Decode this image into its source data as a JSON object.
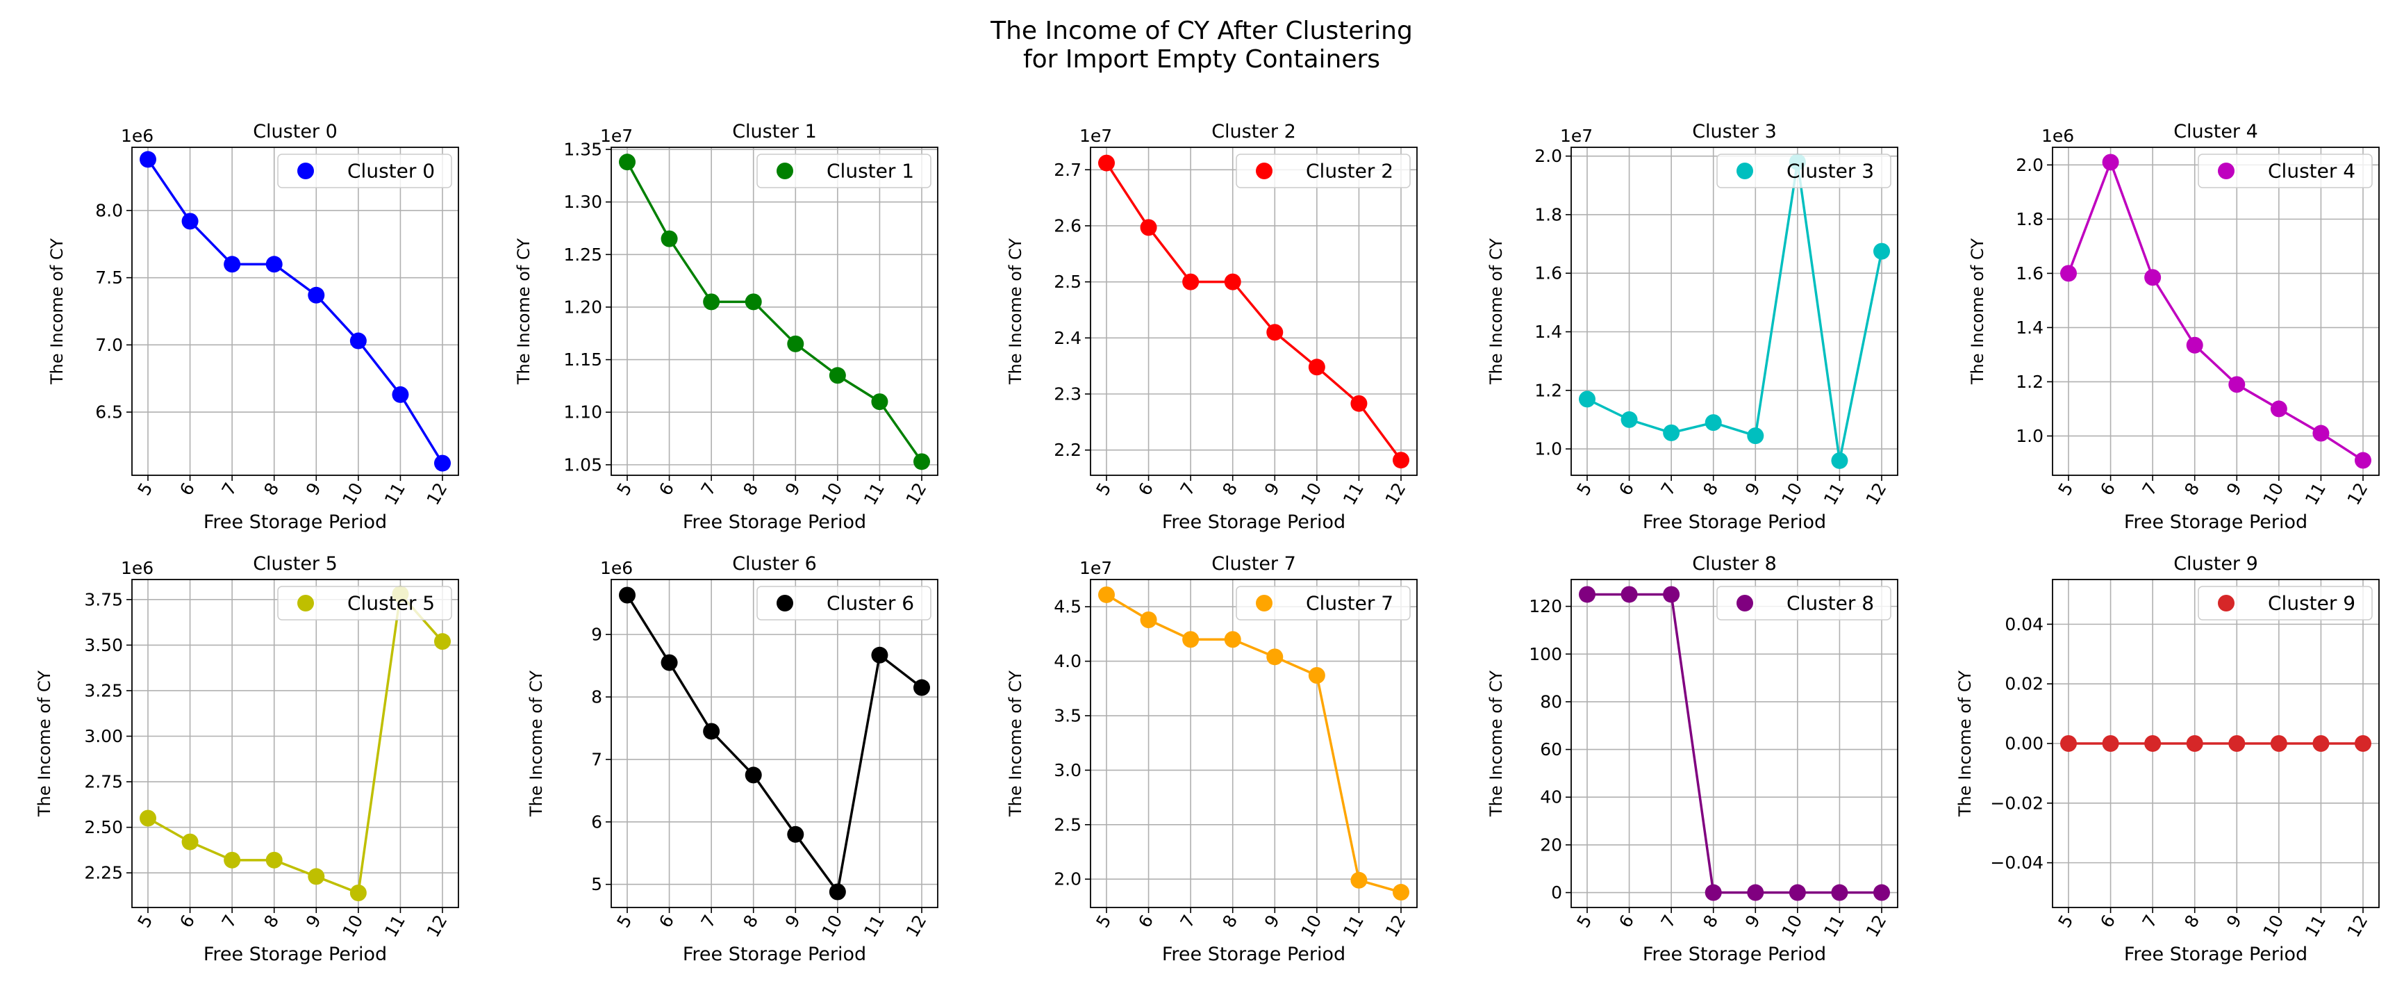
{
  "figure": {
    "title_line1": "The Income of CY After Clustering",
    "title_line2": "for Import Empty Containers"
  },
  "chart_data": [
    {
      "type": "line",
      "title": "Cluster 0",
      "legend": "Cluster 0",
      "color": "#0000ff",
      "xlabel": "Free Storage Period",
      "ylabel": "The Income of CY",
      "multiplier": "1e6",
      "x": [
        5,
        6,
        7,
        8,
        9,
        10,
        11,
        12
      ],
      "values": [
        8.38,
        7.92,
        7.6,
        7.6,
        7.37,
        7.03,
        6.63,
        6.12
      ],
      "ylim": [
        6.03,
        8.47
      ],
      "yticks": [
        6.5,
        7.0,
        7.5,
        8.0
      ],
      "ytick_labels": [
        "6.5",
        "7.0",
        "7.5",
        "8.0"
      ]
    },
    {
      "type": "line",
      "title": "Cluster 1",
      "legend": "Cluster 1",
      "color": "#008000",
      "xlabel": "Free Storage Period",
      "ylabel": "The Income of CY",
      "multiplier": "1e7",
      "x": [
        5,
        6,
        7,
        8,
        9,
        10,
        11,
        12
      ],
      "values": [
        1.338,
        1.265,
        1.205,
        1.205,
        1.165,
        1.135,
        1.11,
        1.053
      ],
      "ylim": [
        1.04,
        1.352
      ],
      "yticks": [
        1.05,
        1.1,
        1.15,
        1.2,
        1.25,
        1.3,
        1.35
      ],
      "ytick_labels": [
        "1.05",
        "1.10",
        "1.15",
        "1.20",
        "1.25",
        "1.30",
        "1.35"
      ]
    },
    {
      "type": "line",
      "title": "Cluster 2",
      "legend": "Cluster 2",
      "color": "#ff0000",
      "xlabel": "Free Storage Period",
      "ylabel": "The Income of CY",
      "multiplier": "1e7",
      "x": [
        5,
        6,
        7,
        8,
        9,
        10,
        11,
        12
      ],
      "values": [
        2.712,
        2.597,
        2.5,
        2.5,
        2.41,
        2.348,
        2.283,
        2.182
      ],
      "ylim": [
        2.155,
        2.74
      ],
      "yticks": [
        2.2,
        2.3,
        2.4,
        2.5,
        2.6,
        2.7
      ],
      "ytick_labels": [
        "2.2",
        "2.3",
        "2.4",
        "2.5",
        "2.6",
        "2.7"
      ]
    },
    {
      "type": "line",
      "title": "Cluster 3",
      "legend": "Cluster 3",
      "color": "#00bfbf",
      "xlabel": "Free Storage Period",
      "ylabel": "The Income of CY",
      "multiplier": "1e7",
      "x": [
        5,
        6,
        7,
        8,
        9,
        10,
        11,
        12
      ],
      "values": [
        1.17,
        1.1,
        1.055,
        1.09,
        1.045,
        1.98,
        0.96,
        1.675
      ],
      "ylim": [
        0.91,
        2.03
      ],
      "yticks": [
        1.0,
        1.2,
        1.4,
        1.6,
        1.8,
        2.0
      ],
      "ytick_labels": [
        "1.0",
        "1.2",
        "1.4",
        "1.6",
        "1.8",
        "2.0"
      ]
    },
    {
      "type": "line",
      "title": "Cluster 4",
      "legend": "Cluster 4",
      "color": "#bf00bf",
      "xlabel": "Free Storage Period",
      "ylabel": "The Income of CY",
      "multiplier": "1e6",
      "x": [
        5,
        6,
        7,
        8,
        9,
        10,
        11,
        12
      ],
      "values": [
        1.6,
        2.01,
        1.585,
        1.335,
        1.19,
        1.1,
        1.01,
        0.91
      ],
      "ylim": [
        0.855,
        2.065
      ],
      "yticks": [
        1.0,
        1.2,
        1.4,
        1.6,
        1.8,
        2.0
      ],
      "ytick_labels": [
        "1.0",
        "1.2",
        "1.4",
        "1.6",
        "1.8",
        "2.0"
      ]
    },
    {
      "type": "line",
      "title": "Cluster 5",
      "legend": "Cluster 5",
      "color": "#bfbf00",
      "xlabel": "Free Storage Period",
      "ylabel": "The Income of CY",
      "multiplier": "1e6",
      "x": [
        5,
        6,
        7,
        8,
        9,
        10,
        11,
        12
      ],
      "values": [
        2.55,
        2.42,
        2.32,
        2.32,
        2.23,
        2.14,
        3.78,
        3.52
      ],
      "ylim": [
        2.06,
        3.86
      ],
      "yticks": [
        2.25,
        2.5,
        2.75,
        3.0,
        3.25,
        3.5,
        3.75
      ],
      "ytick_labels": [
        "2.25",
        "2.50",
        "2.75",
        "3.00",
        "3.25",
        "3.50",
        "3.75"
      ]
    },
    {
      "type": "line",
      "title": "Cluster 6",
      "legend": "Cluster 6",
      "color": "#000000",
      "xlabel": "Free Storage Period",
      "ylabel": "The Income of CY",
      "multiplier": "1e6",
      "x": [
        5,
        6,
        7,
        8,
        9,
        10,
        11,
        12
      ],
      "values": [
        9.63,
        8.55,
        7.45,
        6.75,
        5.8,
        4.88,
        8.67,
        8.15
      ],
      "ylim": [
        4.63,
        9.88
      ],
      "yticks": [
        5,
        6,
        7,
        8,
        9
      ],
      "ytick_labels": [
        "5",
        "6",
        "7",
        "8",
        "9"
      ]
    },
    {
      "type": "line",
      "title": "Cluster 7",
      "legend": "Cluster 7",
      "color": "#ffa500",
      "xlabel": "Free Storage Period",
      "ylabel": "The Income of CY",
      "multiplier": "1e7",
      "x": [
        5,
        6,
        7,
        8,
        9,
        10,
        11,
        12
      ],
      "values": [
        4.61,
        4.38,
        4.2,
        4.2,
        4.04,
        3.87,
        1.99,
        1.88
      ],
      "ylim": [
        1.74,
        4.75
      ],
      "yticks": [
        2.0,
        2.5,
        3.0,
        3.5,
        4.0,
        4.5
      ],
      "ytick_labels": [
        "2.0",
        "2.5",
        "3.0",
        "3.5",
        "4.0",
        "4.5"
      ]
    },
    {
      "type": "line",
      "title": "Cluster 8",
      "legend": "Cluster 8",
      "color": "#800080",
      "xlabel": "Free Storage Period",
      "ylabel": "The Income of CY",
      "multiplier": "",
      "x": [
        5,
        6,
        7,
        8,
        9,
        10,
        11,
        12
      ],
      "values": [
        125,
        125,
        125,
        0,
        0,
        0,
        0,
        0
      ],
      "ylim": [
        -6.25,
        131.25
      ],
      "yticks": [
        0,
        20,
        40,
        60,
        80,
        100,
        120
      ],
      "ytick_labels": [
        "0",
        "20",
        "40",
        "60",
        "80",
        "100",
        "120"
      ]
    },
    {
      "type": "line",
      "title": "Cluster 9",
      "legend": "Cluster 9",
      "color": "#d62728",
      "xlabel": "Free Storage Period",
      "ylabel": "The Income of CY",
      "multiplier": "",
      "x": [
        5,
        6,
        7,
        8,
        9,
        10,
        11,
        12
      ],
      "values": [
        0,
        0,
        0,
        0,
        0,
        0,
        0,
        0
      ],
      "ylim": [
        -0.055,
        0.055
      ],
      "yticks": [
        -0.04,
        -0.02,
        0.0,
        0.02,
        0.04
      ],
      "ytick_labels": [
        "−0.04",
        "−0.02",
        "0.00",
        "0.02",
        "0.04"
      ]
    }
  ]
}
